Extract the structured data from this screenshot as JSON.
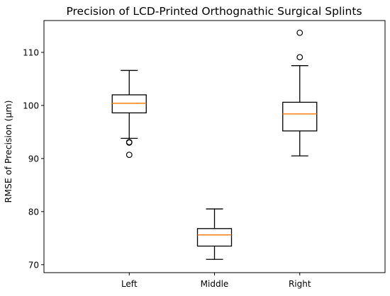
{
  "chart_data": {
    "type": "box",
    "title": "Precision of LCD-Printed Orthognathic Surgical Splints",
    "xlabel": "",
    "ylabel": "RMSE of Precision (µm)",
    "ylim": [
      68.5,
      116
    ],
    "yticks": [
      70,
      80,
      90,
      100,
      110
    ],
    "grid": false,
    "categories": [
      "Left",
      "Middle",
      "Right"
    ],
    "boxes": [
      {
        "category": "Left",
        "whisker_low": 93.8,
        "q1": 98.6,
        "median": 100.4,
        "q3": 102.0,
        "whisker_high": 106.6,
        "outliers": [
          93.1,
          93.0,
          90.7
        ]
      },
      {
        "category": "Middle",
        "whisker_low": 71.0,
        "q1": 73.5,
        "median": 75.6,
        "q3": 76.8,
        "whisker_high": 80.5,
        "outliers": []
      },
      {
        "category": "Right",
        "whisker_low": 90.5,
        "q1": 95.2,
        "median": 98.4,
        "q3": 100.6,
        "whisker_high": 107.5,
        "outliers": [
          109.1,
          113.7
        ]
      }
    ],
    "colors": {
      "box": "#000000",
      "median": "#ff7f0e",
      "outlier": "#000000"
    }
  }
}
